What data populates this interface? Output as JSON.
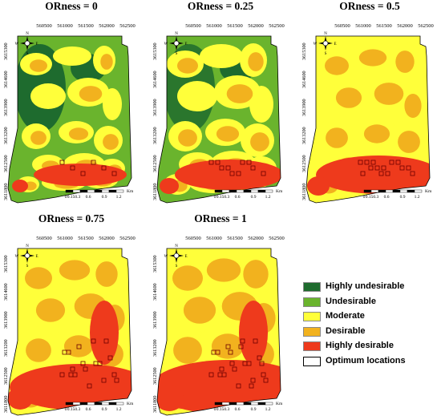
{
  "panels": [
    {
      "title": "ORness = 0",
      "level": 0
    },
    {
      "title": "ORness = 0.25",
      "level": 1
    },
    {
      "title": "ORness = 0.5",
      "level": 2
    },
    {
      "title": "ORness = 0.75",
      "level": 3
    },
    {
      "title": "ORness = 1",
      "level": 4
    }
  ],
  "x_ticks": [
    "560500",
    "561000",
    "561500",
    "562000",
    "562500"
  ],
  "y_ticks": [
    "3615300",
    "3614600",
    "3613900",
    "3613200",
    "3612500",
    "3611800"
  ],
  "scale_bar": {
    "labels": [
      "0",
      "0.150.3",
      "0.6",
      "0.9",
      "1.2"
    ],
    "unit": "Km"
  },
  "compass": {
    "n": "N",
    "s": "S",
    "e": "E",
    "w": "W"
  },
  "legend": [
    {
      "label": "Highly undesirable",
      "color": "#1e6b2e"
    },
    {
      "label": "Undesirable",
      "color": "#6ab42d"
    },
    {
      "label": "Moderate",
      "color": "#ffff3a"
    },
    {
      "label": "Desirable",
      "color": "#f2b21e"
    },
    {
      "label": "Highly desirable",
      "color": "#ee3a1c"
    },
    {
      "label": "Optimum locations",
      "color": "#ffffff"
    }
  ]
}
